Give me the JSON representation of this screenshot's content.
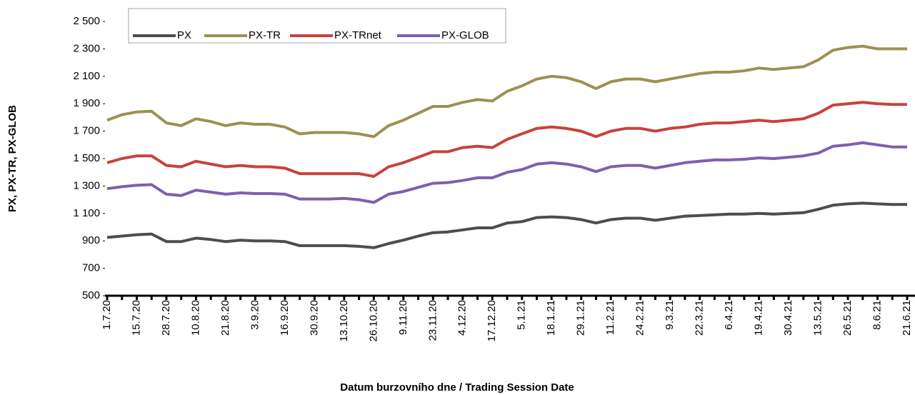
{
  "chart_data": {
    "type": "line",
    "y_label": "PX, PX-TR, PX-GLOB",
    "x_label": "Datum burzovního dne / Trading Session Date",
    "categories": [
      "1.7.20",
      null,
      "15.7.20",
      null,
      "28.7.20",
      null,
      "10.8.20",
      null,
      "21.8.20",
      null,
      "3.9.20",
      null,
      "16.9.20",
      null,
      "30.9.20",
      null,
      "13.10.20",
      null,
      "26.10.20",
      null,
      "9.11.20",
      null,
      "23.11.20",
      null,
      "4.12.20",
      null,
      "17.12.20",
      null,
      "5.1.21",
      null,
      "18.1.21",
      null,
      "29.1.21",
      null,
      "11.2.21",
      null,
      "24.2.21",
      null,
      "9.3.21",
      null,
      "22.3.21",
      null,
      "6.4.21",
      null,
      "19.4.21",
      null,
      "30.4.21",
      null,
      "13.5.21",
      null,
      "26.5.21",
      null,
      "8.6.21",
      null,
      "21.6.21"
    ],
    "series": [
      {
        "name": "PX",
        "color": "#4d4d4d",
        "values": [
          925,
          935,
          945,
          950,
          895,
          895,
          920,
          910,
          895,
          905,
          900,
          900,
          895,
          865,
          865,
          865,
          865,
          860,
          850,
          880,
          905,
          935,
          960,
          965,
          980,
          995,
          995,
          1030,
          1040,
          1070,
          1075,
          1070,
          1055,
          1030,
          1055,
          1065,
          1065,
          1050,
          1065,
          1080,
          1085,
          1090,
          1095,
          1095,
          1100,
          1095,
          1100,
          1105,
          1130,
          1160,
          1170,
          1175,
          1170,
          1165,
          1165
        ]
      },
      {
        "name": "PX-TR",
        "color": "#9c9155",
        "values": [
          1780,
          1820,
          1840,
          1845,
          1760,
          1740,
          1790,
          1770,
          1740,
          1760,
          1750,
          1750,
          1730,
          1680,
          1690,
          1690,
          1690,
          1680,
          1660,
          1740,
          1780,
          1830,
          1880,
          1880,
          1910,
          1930,
          1920,
          1990,
          2030,
          2080,
          2100,
          2090,
          2060,
          2010,
          2060,
          2080,
          2080,
          2060,
          2080,
          2100,
          2120,
          2130,
          2130,
          2140,
          2160,
          2150,
          2160,
          2170,
          2220,
          2290,
          2310,
          2320,
          2300,
          2300,
          2300
        ]
      },
      {
        "name": "PX-TRnet",
        "color": "#c8423d",
        "values": [
          1470,
          1500,
          1520,
          1520,
          1450,
          1440,
          1480,
          1460,
          1440,
          1450,
          1440,
          1440,
          1430,
          1390,
          1390,
          1390,
          1390,
          1390,
          1370,
          1440,
          1470,
          1510,
          1550,
          1550,
          1580,
          1590,
          1580,
          1640,
          1680,
          1720,
          1730,
          1720,
          1700,
          1660,
          1700,
          1720,
          1720,
          1700,
          1720,
          1730,
          1750,
          1760,
          1760,
          1770,
          1780,
          1770,
          1780,
          1790,
          1830,
          1890,
          1900,
          1910,
          1900,
          1895,
          1895
        ]
      },
      {
        "name": "PX-GLOB",
        "color": "#7e5fb0",
        "values": [
          1280,
          1295,
          1305,
          1310,
          1240,
          1230,
          1270,
          1255,
          1240,
          1250,
          1245,
          1245,
          1240,
          1205,
          1205,
          1205,
          1210,
          1200,
          1180,
          1240,
          1260,
          1290,
          1320,
          1325,
          1340,
          1360,
          1360,
          1400,
          1420,
          1460,
          1470,
          1460,
          1440,
          1405,
          1440,
          1450,
          1450,
          1430,
          1450,
          1470,
          1480,
          1490,
          1490,
          1495,
          1505,
          1500,
          1510,
          1520,
          1540,
          1590,
          1600,
          1615,
          1600,
          1585,
          1585
        ]
      }
    ],
    "ylim": [
      500,
      2500
    ],
    "yticks": [
      {
        "value": 500,
        "label": "500"
      },
      {
        "value": 700,
        "label": "700"
      },
      {
        "value": 900,
        "label": "900"
      },
      {
        "value": 1100,
        "label": "1 100"
      },
      {
        "value": 1300,
        "label": "1 300"
      },
      {
        "value": 1500,
        "label": "1 500"
      },
      {
        "value": 1700,
        "label": "1 700"
      },
      {
        "value": 1900,
        "label": "1 900"
      },
      {
        "value": 2100,
        "label": "2 100"
      },
      {
        "value": 2300,
        "label": "2 300"
      },
      {
        "value": 2500,
        "label": "2 500"
      }
    ],
    "grid": false
  }
}
